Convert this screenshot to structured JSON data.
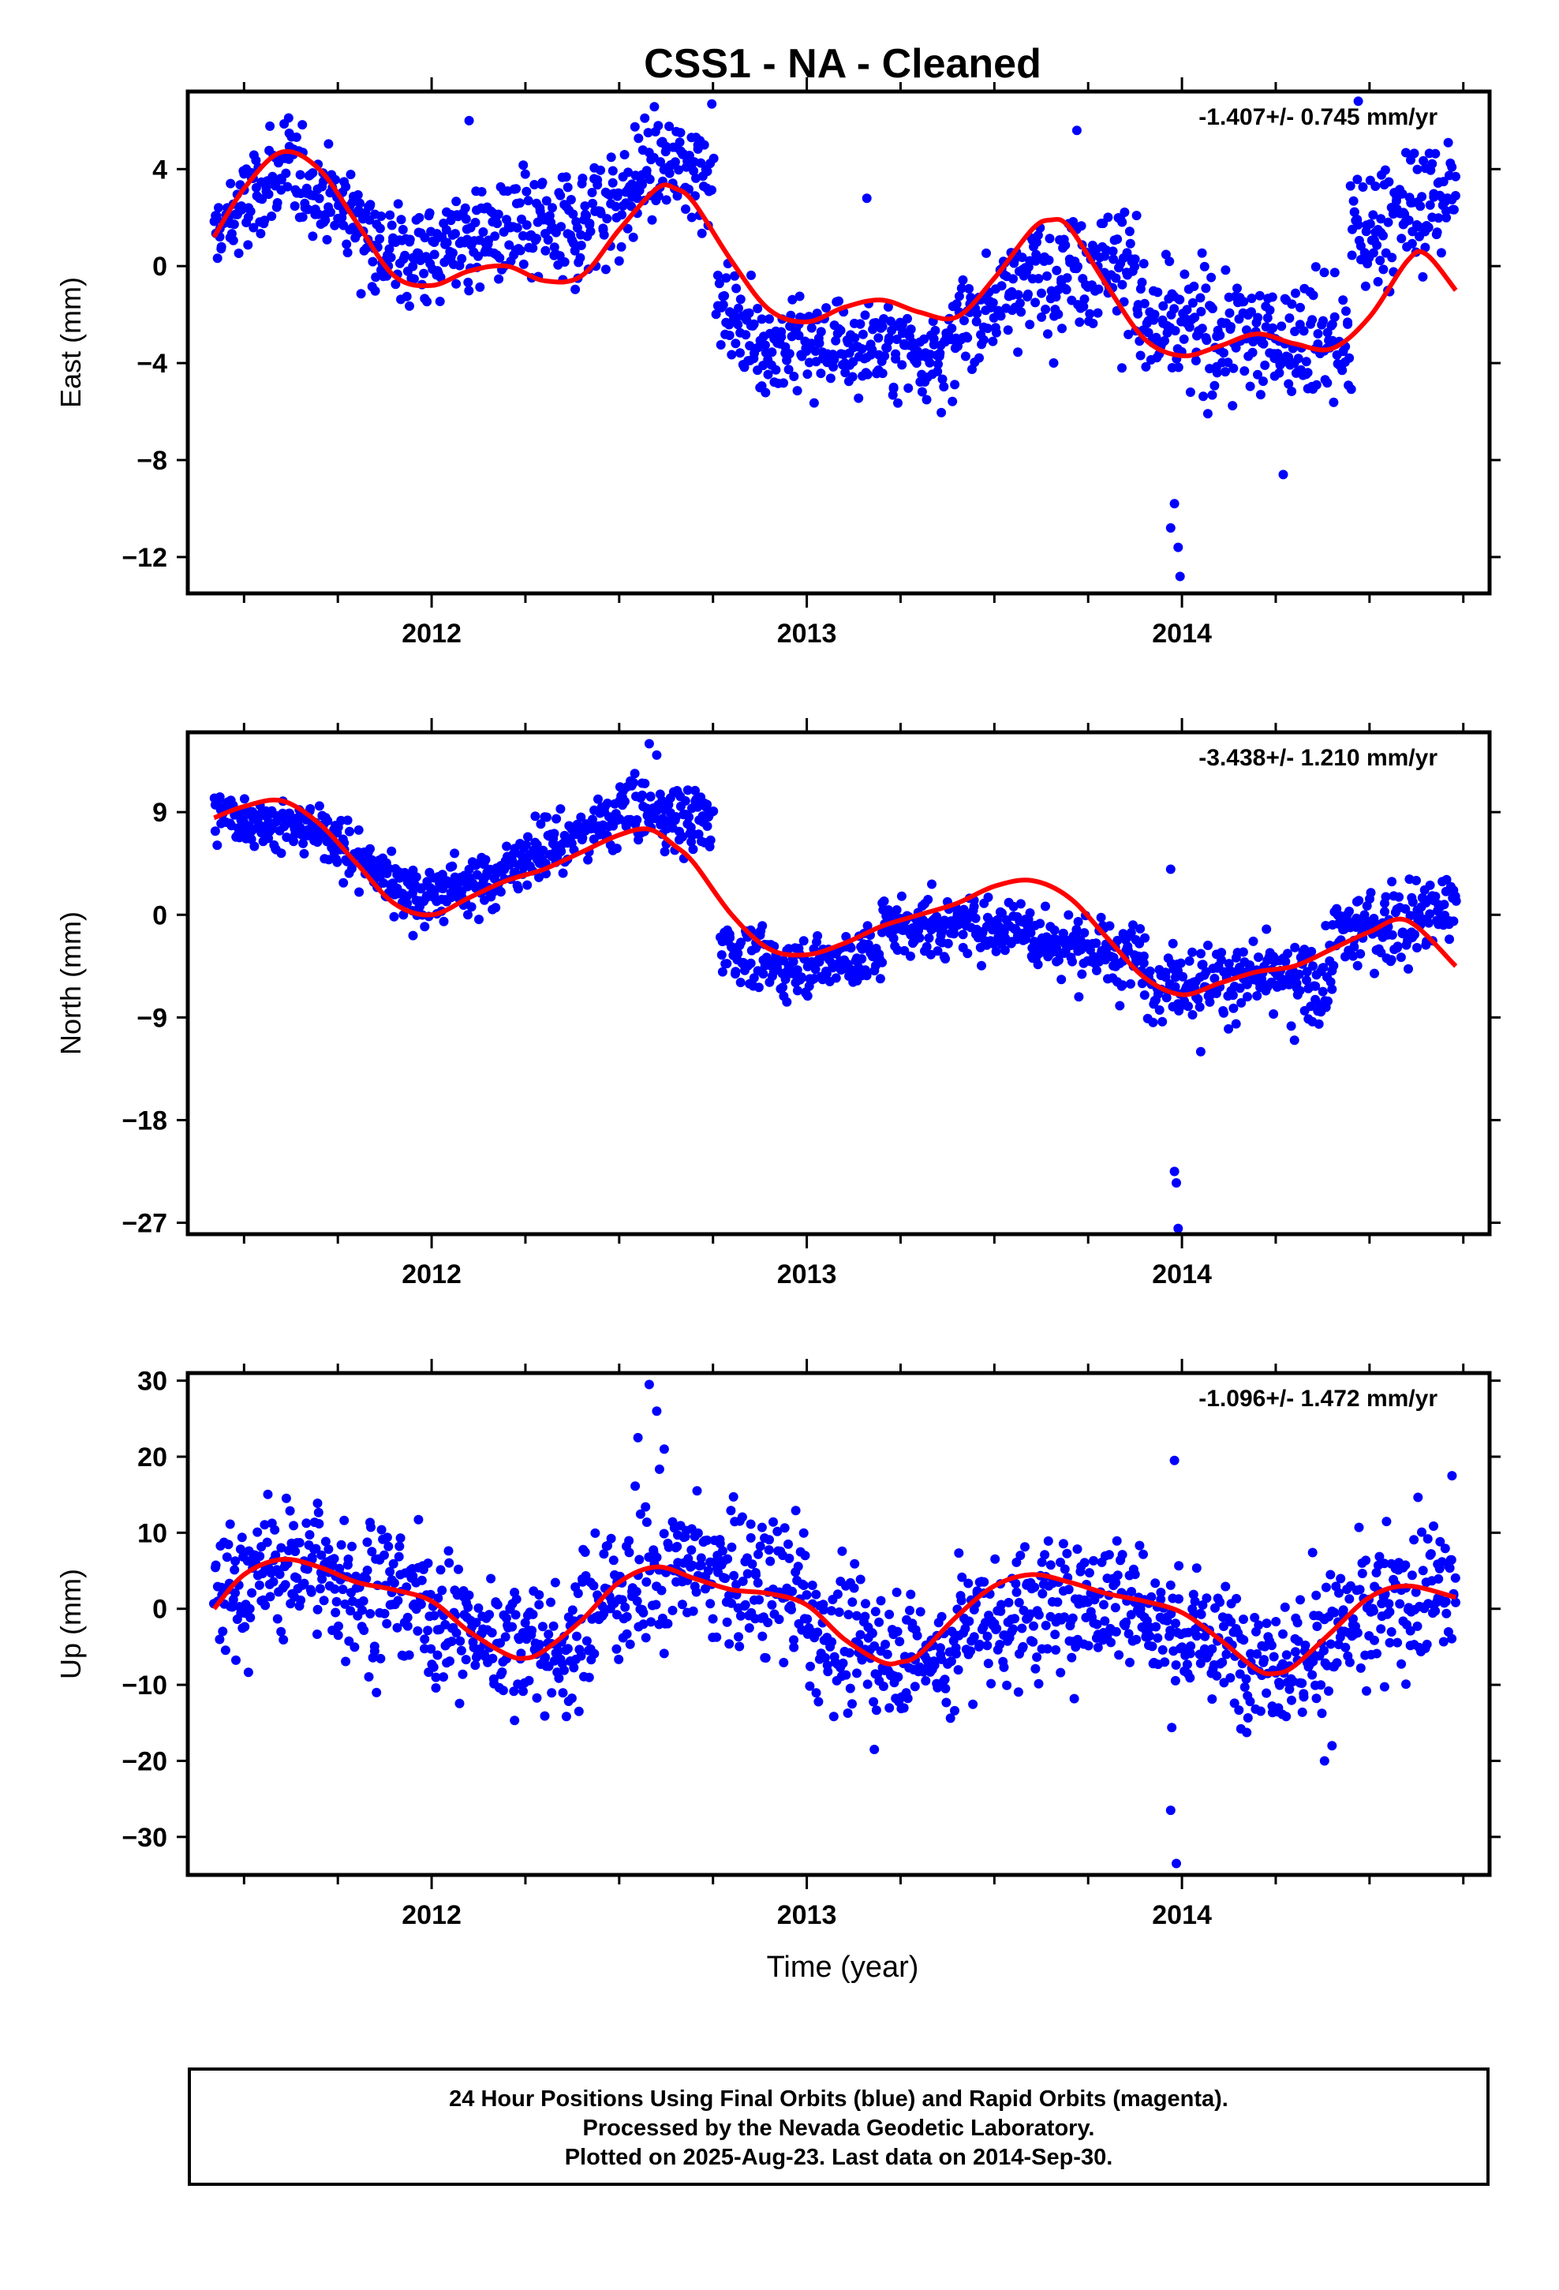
{
  "chart_data": {
    "type": "scatter",
    "title": "CSS1  - NA - Cleaned",
    "xlabel": "Time (year)",
    "colors": {
      "points": "#0000ff",
      "fit": "#ff0000"
    },
    "panels": [
      {
        "ylabel": "East (mm)",
        "rate": "-1.407+/- 0.745 mm/yr",
        "xlim": [
          2011.35,
          2014.82
        ],
        "ylim": [
          -13.5,
          7.2
        ],
        "yticks": [
          4,
          0,
          -4,
          -8,
          -12
        ],
        "ytick_labels": [
          "4",
          "0",
          "−4",
          "−8",
          "−12"
        ],
        "xticks": [
          2012,
          2013,
          2014
        ],
        "xtick_labels": [
          "2012",
          "2013",
          "2014"
        ],
        "fit": {
          "x": [
            2011.42,
            2011.5,
            2011.6,
            2011.7,
            2011.8,
            2011.9,
            2012.0,
            2012.1,
            2012.2,
            2012.3,
            2012.4,
            2012.5,
            2012.6,
            2012.65,
            2012.7,
            2012.8,
            2012.9,
            2013.0,
            2013.1,
            2013.2,
            2013.3,
            2013.4,
            2013.5,
            2013.6,
            2013.65,
            2013.7,
            2013.8,
            2013.9,
            2014.0,
            2014.1,
            2014.2,
            2014.3,
            2014.4,
            2014.5,
            2014.6,
            2014.65,
            2014.73
          ],
          "y": [
            1.2,
            3.2,
            4.7,
            4.0,
            1.8,
            -0.4,
            -0.8,
            -0.2,
            0.0,
            -0.6,
            -0.4,
            1.5,
            3.2,
            3.2,
            2.6,
            0.2,
            -1.8,
            -2.3,
            -1.7,
            -1.4,
            -1.9,
            -2.1,
            -0.5,
            1.5,
            1.9,
            1.6,
            -0.8,
            -3.0,
            -3.7,
            -3.3,
            -2.8,
            -3.2,
            -3.4,
            -2.1,
            0.2,
            0.5,
            -1.0
          ]
        },
        "segments": [
          {
            "x0": 2011.42,
            "x1": 2011.62,
            "base0": 1.2,
            "base1": 4.2,
            "sd": 1.0
          },
          {
            "x0": 2011.62,
            "x1": 2011.85,
            "base0": 4.0,
            "base1": 1.5,
            "sd": 1.0
          },
          {
            "x0": 2011.85,
            "x1": 2012.05,
            "base0": 0.5,
            "base1": 0.5,
            "sd": 1.1
          },
          {
            "x0": 2012.05,
            "x1": 2012.4,
            "base0": 1.2,
            "base1": 1.5,
            "sd": 1.2
          },
          {
            "x0": 2012.4,
            "x1": 2012.55,
            "base0": 2.0,
            "base1": 3.2,
            "sd": 1.2
          },
          {
            "x0": 2012.55,
            "x1": 2012.75,
            "base0": 4.0,
            "base1": 4.2,
            "sd": 1.1
          },
          {
            "x0": 2012.76,
            "x1": 2012.85,
            "base0": -1.5,
            "base1": -2.5,
            "sd": 0.8
          },
          {
            "x0": 2012.85,
            "x1": 2013.4,
            "base0": -3.2,
            "base1": -3.5,
            "sd": 1.0
          },
          {
            "x0": 2013.4,
            "x1": 2013.55,
            "base0": -2.5,
            "base1": -1.0,
            "sd": 1.0
          },
          {
            "x0": 2013.55,
            "x1": 2013.88,
            "base0": -0.5,
            "base1": 0.5,
            "sd": 1.2
          },
          {
            "x0": 2013.88,
            "x1": 2014.45,
            "base0": -2.5,
            "base1": -3.2,
            "sd": 1.3
          },
          {
            "x0": 2014.45,
            "x1": 2014.73,
            "base0": 1.0,
            "base1": 3.2,
            "sd": 1.3
          }
        ],
        "outliers": [
          [
            2013.98,
            -9.8
          ],
          [
            2013.99,
            -11.6
          ],
          [
            2013.995,
            -12.8
          ],
          [
            2013.97,
            -10.8
          ],
          [
            2014.27,
            -8.6
          ],
          [
            2013.84,
            -4.2
          ],
          [
            2013.72,
            5.6
          ],
          [
            2013.16,
            2.8
          ],
          [
            2014.47,
            6.8
          ],
          [
            2012.1,
            6.0
          ]
        ]
      },
      {
        "ylabel": "North (mm)",
        "rate": "-3.438+/- 1.210 mm/yr",
        "xlim": [
          2011.35,
          2014.82
        ],
        "ylim": [
          -28,
          16
        ],
        "yticks": [
          9,
          0,
          -9,
          -18,
          -27
        ],
        "ytick_labels": [
          "9",
          "0",
          "−9",
          "−18",
          "−27"
        ],
        "xticks": [
          2012,
          2013,
          2014
        ],
        "xtick_labels": [
          "2012",
          "2013",
          "2014"
        ],
        "fit": {
          "x": [
            2011.42,
            2011.5,
            2011.6,
            2011.7,
            2011.8,
            2011.9,
            2012.0,
            2012.1,
            2012.2,
            2012.3,
            2012.4,
            2012.5,
            2012.58,
            2012.65,
            2012.7,
            2012.8,
            2012.9,
            2013.0,
            2013.1,
            2013.2,
            2013.3,
            2013.4,
            2013.5,
            2013.6,
            2013.7,
            2013.8,
            2013.9,
            2014.0,
            2014.1,
            2014.2,
            2014.3,
            2014.4,
            2014.5,
            2014.6,
            2014.73
          ],
          "y": [
            8.5,
            9.5,
            10.0,
            8.0,
            4.5,
            1.0,
            0.0,
            1.5,
            3.0,
            4.0,
            5.5,
            7.0,
            7.5,
            6.0,
            4.5,
            0.0,
            -3.0,
            -3.5,
            -2.5,
            -1.0,
            0.0,
            1.0,
            2.5,
            3.0,
            1.5,
            -2.0,
            -5.5,
            -7.0,
            -6.0,
            -5.0,
            -4.5,
            -3.0,
            -1.5,
            -0.5,
            -4.5
          ]
        },
        "segments": [
          {
            "x0": 2011.42,
            "x1": 2011.75,
            "base0": 9.0,
            "base1": 7.0,
            "sd": 1.1
          },
          {
            "x0": 2011.75,
            "x1": 2011.95,
            "base0": 6.0,
            "base1": 2.0,
            "sd": 1.3
          },
          {
            "x0": 2011.95,
            "x1": 2012.2,
            "base0": 1.5,
            "base1": 3.5,
            "sd": 1.3
          },
          {
            "x0": 2012.2,
            "x1": 2012.5,
            "base0": 4.5,
            "base1": 8.5,
            "sd": 1.2
          },
          {
            "x0": 2012.5,
            "x1": 2012.75,
            "base0": 9.5,
            "base1": 8.0,
            "sd": 1.5
          },
          {
            "x0": 2012.77,
            "x1": 2012.95,
            "base0": -2.5,
            "base1": -5.0,
            "sd": 1.2
          },
          {
            "x0": 2012.95,
            "x1": 2013.2,
            "base0": -4.5,
            "base1": -3.5,
            "sd": 1.3
          },
          {
            "x0": 2013.2,
            "x1": 2013.6,
            "base0": -1.0,
            "base1": -1.0,
            "sd": 1.3
          },
          {
            "x0": 2013.6,
            "x1": 2013.9,
            "base0": -2.0,
            "base1": -4.0,
            "sd": 1.5
          },
          {
            "x0": 2013.9,
            "x1": 2014.4,
            "base0": -5.5,
            "base1": -6.0,
            "sd": 1.6
          },
          {
            "x0": 2014.4,
            "x1": 2014.73,
            "base0": -2.0,
            "base1": 0.5,
            "sd": 1.8
          }
        ],
        "outliers": [
          [
            2013.98,
            -22.5
          ],
          [
            2013.985,
            -23.5
          ],
          [
            2013.99,
            -27.5
          ],
          [
            2013.97,
            4.0
          ],
          [
            2014.05,
            -12.0
          ],
          [
            2012.58,
            15.0
          ],
          [
            2012.6,
            14.0
          ],
          [
            2014.3,
            -11.0
          ]
        ]
      },
      {
        "ylabel": "Up (mm)",
        "rate": "-1.096+/- 1.472 mm/yr",
        "xlim": [
          2011.35,
          2014.82
        ],
        "ylim": [
          -35,
          31
        ],
        "yticks": [
          30,
          20,
          10,
          0,
          -10,
          -20,
          -30
        ],
        "ytick_labels": [
          "30",
          "20",
          "10",
          "0",
          "−10",
          "−20",
          "−30"
        ],
        "xticks": [
          2012,
          2013,
          2014
        ],
        "xtick_labels": [
          "2012",
          "2013",
          "2014"
        ],
        "fit": {
          "x": [
            2011.42,
            2011.5,
            2011.6,
            2011.7,
            2011.8,
            2011.9,
            2012.0,
            2012.1,
            2012.2,
            2012.25,
            2012.3,
            2012.4,
            2012.5,
            2012.6,
            2012.7,
            2012.8,
            2012.9,
            2013.0,
            2013.1,
            2013.2,
            2013.25,
            2013.3,
            2013.4,
            2013.5,
            2013.6,
            2013.7,
            2013.8,
            2013.9,
            2014.0,
            2014.1,
            2014.2,
            2014.25,
            2014.3,
            2014.4,
            2014.5,
            2014.6,
            2014.73
          ],
          "y": [
            0.0,
            4.5,
            6.5,
            5.5,
            3.5,
            2.5,
            1.0,
            -3.0,
            -6.0,
            -6.5,
            -5.5,
            -1.5,
            3.5,
            5.5,
            4.0,
            2.5,
            2.0,
            0.5,
            -4.0,
            -7.0,
            -7.0,
            -6.0,
            -1.0,
            3.0,
            4.5,
            3.5,
            2.0,
            1.0,
            -0.5,
            -4.0,
            -8.0,
            -8.5,
            -7.5,
            -3.0,
            1.5,
            3.0,
            1.5
          ]
        },
        "segments": [
          {
            "x0": 2011.42,
            "x1": 2011.7,
            "base0": 2.0,
            "base1": 7.0,
            "sd": 4.5
          },
          {
            "x0": 2011.7,
            "x1": 2012.0,
            "base0": 4.0,
            "base1": 1.0,
            "sd": 5.0
          },
          {
            "x0": 2012.0,
            "x1": 2012.4,
            "base0": -2.0,
            "base1": -6.0,
            "sd": 4.0
          },
          {
            "x0": 2012.4,
            "x1": 2012.65,
            "base0": 0.0,
            "base1": 6.0,
            "sd": 5.0
          },
          {
            "x0": 2012.65,
            "x1": 2013.0,
            "base0": 6.0,
            "base1": 2.0,
            "sd": 4.5
          },
          {
            "x0": 2013.0,
            "x1": 2013.4,
            "base0": -3.0,
            "base1": -7.0,
            "sd": 4.0
          },
          {
            "x0": 2013.4,
            "x1": 2013.9,
            "base0": -2.0,
            "base1": 2.0,
            "sd": 4.5
          },
          {
            "x0": 2013.9,
            "x1": 2014.35,
            "base0": -2.0,
            "base1": -8.0,
            "sd": 4.0
          },
          {
            "x0": 2014.35,
            "x1": 2014.73,
            "base0": -4.0,
            "base1": 3.0,
            "sd": 4.5
          }
        ],
        "outliers": [
          [
            2012.58,
            29.5
          ],
          [
            2012.6,
            26.0
          ],
          [
            2012.55,
            22.5
          ],
          [
            2012.62,
            21.0
          ],
          [
            2013.98,
            19.5
          ],
          [
            2013.97,
            -26.5
          ],
          [
            2013.985,
            -33.5
          ],
          [
            2014.38,
            -20.0
          ],
          [
            2014.4,
            -18.0
          ],
          [
            2013.18,
            -18.5
          ],
          [
            2014.72,
            17.5
          ]
        ]
      }
    ]
  },
  "footer": {
    "line1": "24 Hour Positions Using Final Orbits (blue) and Rapid Orbits (magenta).",
    "line2": "Processed by the Nevada Geodetic Laboratory.",
    "line3": "Plotted on 2025-Aug-23. Last data on 2014-Sep-30."
  }
}
